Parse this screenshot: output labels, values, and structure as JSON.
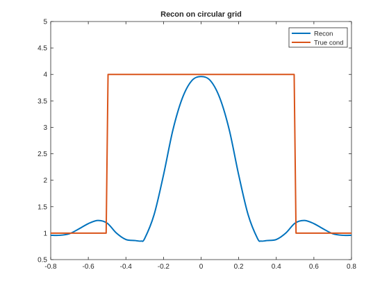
{
  "chart_data": {
    "type": "line",
    "title": "Recon on circular grid",
    "xlabel": "",
    "ylabel": "",
    "xlim": [
      -0.8,
      0.8
    ],
    "ylim": [
      0.5,
      5
    ],
    "xticks": [
      -0.8,
      -0.6,
      -0.4,
      -0.2,
      0,
      0.2,
      0.4,
      0.6,
      0.8
    ],
    "xtick_labels": [
      "-0.8",
      "-0.6",
      "-0.4",
      "-0.2",
      "0",
      "0.2",
      "0.4",
      "0.6",
      "0.8"
    ],
    "yticks": [
      0.5,
      1,
      1.5,
      2,
      2.5,
      3,
      3.5,
      4,
      4.5,
      5
    ],
    "ytick_labels": [
      "0.5",
      "1",
      "1.5",
      "2",
      "2.5",
      "3",
      "3.5",
      "4",
      "4.5",
      "5"
    ],
    "grid": false,
    "legend_position": "top-right",
    "series": [
      {
        "name": "Recon",
        "color": "#0072bd",
        "x": [
          -0.8,
          -0.75,
          -0.7,
          -0.65,
          -0.6,
          -0.55,
          -0.5,
          -0.45,
          -0.4,
          -0.35,
          -0.32,
          -0.3,
          -0.25,
          -0.2,
          -0.15,
          -0.1,
          -0.05,
          0,
          0.05,
          0.1,
          0.15,
          0.2,
          0.25,
          0.3,
          0.32,
          0.35,
          0.4,
          0.45,
          0.5,
          0.55,
          0.6,
          0.65,
          0.7,
          0.75,
          0.8
        ],
        "y": [
          0.96,
          0.96,
          0.99,
          1.08,
          1.18,
          1.24,
          1.19,
          1.0,
          0.88,
          0.86,
          0.85,
          0.9,
          1.35,
          2.1,
          2.95,
          3.55,
          3.88,
          3.96,
          3.88,
          3.55,
          2.95,
          2.1,
          1.35,
          0.9,
          0.85,
          0.86,
          0.88,
          1.0,
          1.19,
          1.24,
          1.18,
          1.08,
          0.99,
          0.96,
          0.96
        ]
      },
      {
        "name": "True cond",
        "color": "#d95319",
        "x": [
          -0.8,
          -0.505,
          -0.495,
          0.495,
          0.505,
          0.8
        ],
        "y": [
          1,
          1,
          4,
          4,
          1,
          1
        ]
      }
    ]
  }
}
